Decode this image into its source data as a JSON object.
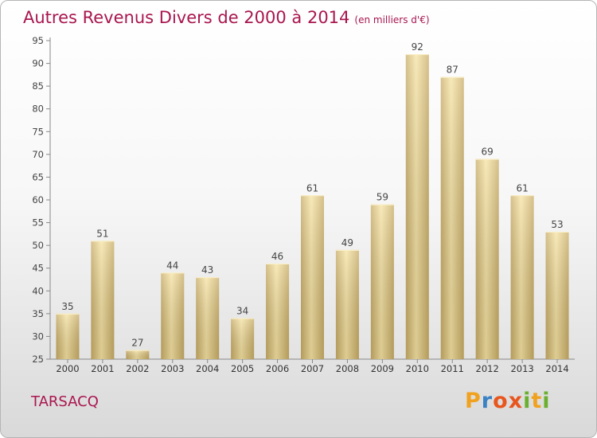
{
  "title": "Autres Revenus Divers de 2000 à 2014",
  "subtitle": "(en milliers d'€)",
  "place": "TARSACQ",
  "logo": {
    "letters": [
      "P",
      "r",
      "o",
      "x",
      "i",
      "t",
      "i"
    ],
    "text": "Proxiti"
  },
  "colors": {
    "title": "#a9164f",
    "bar_light": "#f6e3a3",
    "bar_dark": "#c8ac65",
    "bar_highlight": "#fbf0c8"
  },
  "chart_data": {
    "type": "bar",
    "categories": [
      "2000",
      "2001",
      "2002",
      "2003",
      "2004",
      "2005",
      "2006",
      "2007",
      "2008",
      "2009",
      "2010",
      "2011",
      "2012",
      "2013",
      "2014"
    ],
    "values": [
      35,
      51,
      27,
      44,
      43,
      34,
      46,
      61,
      49,
      59,
      92,
      87,
      69,
      61,
      53
    ],
    "ylim": [
      25,
      95
    ],
    "yticks": [
      25,
      30,
      35,
      40,
      45,
      50,
      55,
      60,
      65,
      70,
      75,
      80,
      85,
      90,
      95
    ],
    "grid": false,
    "xlabel": "",
    "ylabel": ""
  }
}
